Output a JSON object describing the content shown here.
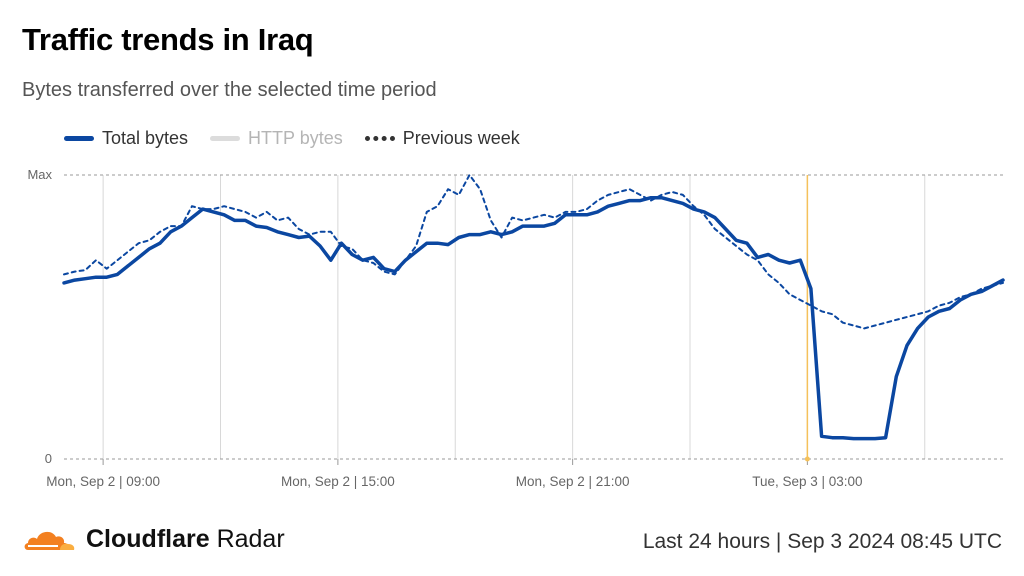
{
  "header": {
    "title": "Traffic trends in Iraq",
    "subtitle": "Bytes transferred over the selected time period"
  },
  "legend": {
    "items": [
      {
        "label": "Total bytes",
        "color": "#0b47a1",
        "active": true
      },
      {
        "label": "HTTP bytes",
        "color": "#d9d9d9",
        "active": false
      },
      {
        "label": "Previous week",
        "color": "#333333",
        "active": true
      }
    ]
  },
  "footer": {
    "brand_bold": "Cloudflare",
    "brand_rest": " Radar",
    "range": "Last 24 hours | Sep 3 2024 08:45 UTC"
  },
  "colors": {
    "total": "#0b47a1",
    "previous": "#0b47a1",
    "marker": "#f5c15a",
    "logo_orange": "#f38020",
    "logo_light": "#faae40"
  },
  "chart_data": {
    "type": "line",
    "ylabels": [
      "Max",
      "0"
    ],
    "ylim": [
      0,
      100
    ],
    "x_ticks": [
      "Mon, Sep 2 | 09:00",
      "Mon, Sep 2 | 15:00",
      "Mon, Sep 2 | 21:00",
      "Tue, Sep 3 | 03:00"
    ],
    "x_tick_hours": [
      1,
      7,
      13,
      19
    ],
    "x_range_hours": [
      0,
      24
    ],
    "marker_hour": 19,
    "series": [
      {
        "name": "Total bytes",
        "style": "solid",
        "points": [
          [
            0.0,
            62
          ],
          [
            0.5,
            63
          ],
          [
            1.0,
            63.5
          ],
          [
            1.5,
            64
          ],
          [
            2.0,
            64
          ],
          [
            2.5,
            65
          ],
          [
            3.0,
            68
          ],
          [
            3.5,
            71
          ],
          [
            4.0,
            74
          ],
          [
            4.5,
            76
          ],
          [
            5.0,
            80
          ],
          [
            5.5,
            82
          ],
          [
            6.0,
            85
          ],
          [
            6.5,
            88
          ],
          [
            7.0,
            87
          ],
          [
            7.5,
            86
          ],
          [
            8.0,
            84
          ],
          [
            8.5,
            84
          ],
          [
            9.0,
            82
          ],
          [
            9.5,
            81.5
          ],
          [
            10.0,
            80
          ],
          [
            10.5,
            79
          ],
          [
            11.0,
            78
          ],
          [
            11.5,
            78.5
          ],
          [
            12.0,
            75
          ],
          [
            12.5,
            70
          ],
          [
            13.0,
            76
          ],
          [
            13.5,
            72
          ],
          [
            14.0,
            70
          ],
          [
            14.5,
            71
          ],
          [
            15.0,
            67
          ],
          [
            15.5,
            66
          ],
          [
            16.0,
            70
          ],
          [
            16.5,
            73
          ],
          [
            17.0,
            76
          ],
          [
            17.5,
            76
          ],
          [
            18.0,
            75.5
          ],
          [
            18.5,
            78
          ],
          [
            19.0,
            79
          ],
          [
            19.5,
            79
          ],
          [
            20.0,
            80
          ],
          [
            20.5,
            79
          ],
          [
            21.0,
            80
          ],
          [
            21.5,
            82
          ],
          [
            22.0,
            82
          ],
          [
            22.5,
            82
          ],
          [
            23.0,
            83
          ],
          [
            23.5,
            86
          ],
          [
            24.0,
            86
          ],
          [
            24.5,
            86
          ],
          [
            25.0,
            87
          ],
          [
            25.5,
            89
          ],
          [
            26.0,
            90
          ],
          [
            26.5,
            91
          ],
          [
            27.0,
            91
          ],
          [
            27.5,
            92
          ],
          [
            28.0,
            92
          ],
          [
            28.5,
            91
          ],
          [
            29.0,
            90
          ],
          [
            29.5,
            88
          ],
          [
            30.0,
            87
          ],
          [
            30.5,
            85
          ],
          [
            31.0,
            81
          ],
          [
            31.5,
            77
          ],
          [
            32.0,
            76
          ],
          [
            32.5,
            71
          ],
          [
            33.0,
            72
          ],
          [
            33.5,
            70
          ],
          [
            34.0,
            69
          ],
          [
            34.5,
            70
          ],
          [
            35.0,
            60
          ],
          [
            35.5,
            8
          ],
          [
            36.0,
            7.5
          ],
          [
            36.5,
            7.5
          ],
          [
            37.0,
            7.2
          ],
          [
            37.5,
            7.2
          ],
          [
            38.0,
            7.2
          ],
          [
            38.5,
            7.5
          ],
          [
            39.0,
            29
          ],
          [
            39.5,
            40
          ],
          [
            40.0,
            46
          ],
          [
            40.5,
            50
          ],
          [
            41.0,
            52
          ],
          [
            41.5,
            53
          ],
          [
            42.0,
            56
          ],
          [
            42.5,
            58
          ],
          [
            43.0,
            59
          ],
          [
            43.5,
            61
          ],
          [
            44.0,
            63
          ]
        ]
      },
      {
        "name": "Previous week",
        "style": "dotted",
        "points": [
          [
            0.0,
            65
          ],
          [
            0.5,
            66
          ],
          [
            1.0,
            66.5
          ],
          [
            1.5,
            70
          ],
          [
            2.0,
            67
          ],
          [
            2.5,
            70
          ],
          [
            3.0,
            73
          ],
          [
            3.5,
            76
          ],
          [
            4.0,
            77
          ],
          [
            4.5,
            80
          ],
          [
            5.0,
            82
          ],
          [
            5.5,
            82
          ],
          [
            6.0,
            89
          ],
          [
            6.5,
            88
          ],
          [
            7.0,
            88
          ],
          [
            7.5,
            89
          ],
          [
            8.0,
            88
          ],
          [
            8.5,
            87
          ],
          [
            9.0,
            85
          ],
          [
            9.5,
            87
          ],
          [
            10.0,
            84
          ],
          [
            10.5,
            85
          ],
          [
            11.0,
            81
          ],
          [
            11.5,
            79
          ],
          [
            12.0,
            80
          ],
          [
            12.5,
            80
          ],
          [
            13.0,
            75
          ],
          [
            13.5,
            74
          ],
          [
            14.0,
            70
          ],
          [
            14.5,
            69
          ],
          [
            15.0,
            66
          ],
          [
            15.5,
            65
          ],
          [
            16.0,
            70
          ],
          [
            16.5,
            75
          ],
          [
            17.0,
            87
          ],
          [
            17.5,
            89
          ],
          [
            18.0,
            95
          ],
          [
            18.5,
            93
          ],
          [
            19.0,
            100
          ],
          [
            19.5,
            95
          ],
          [
            20.0,
            84
          ],
          [
            20.5,
            78
          ],
          [
            21.0,
            85
          ],
          [
            21.5,
            84
          ],
          [
            22.0,
            85
          ],
          [
            22.5,
            86
          ],
          [
            23.0,
            85
          ],
          [
            23.5,
            87
          ],
          [
            24.0,
            87
          ],
          [
            24.5,
            88
          ],
          [
            25.0,
            91
          ],
          [
            25.5,
            93
          ],
          [
            26.0,
            94
          ],
          [
            26.5,
            95
          ],
          [
            27.0,
            93
          ],
          [
            27.5,
            91
          ],
          [
            28.0,
            93
          ],
          [
            28.5,
            94
          ],
          [
            29.0,
            93
          ],
          [
            29.5,
            89
          ],
          [
            30.0,
            86
          ],
          [
            30.5,
            81
          ],
          [
            31.0,
            78
          ],
          [
            31.5,
            75
          ],
          [
            32.0,
            72
          ],
          [
            32.5,
            70
          ],
          [
            33.0,
            65
          ],
          [
            33.5,
            62
          ],
          [
            34.0,
            58
          ],
          [
            34.5,
            56
          ],
          [
            35.0,
            54
          ],
          [
            35.5,
            52
          ],
          [
            36.0,
            51
          ],
          [
            36.5,
            48
          ],
          [
            37.0,
            47
          ],
          [
            37.5,
            46
          ],
          [
            38.0,
            47
          ],
          [
            38.5,
            48
          ],
          [
            39.0,
            49
          ],
          [
            39.5,
            50
          ],
          [
            40.0,
            51
          ],
          [
            40.5,
            52
          ],
          [
            41.0,
            54
          ],
          [
            41.5,
            55
          ],
          [
            42.0,
            57
          ],
          [
            42.5,
            58
          ],
          [
            43.0,
            60
          ],
          [
            43.5,
            61
          ],
          [
            44.0,
            62
          ]
        ]
      }
    ]
  }
}
